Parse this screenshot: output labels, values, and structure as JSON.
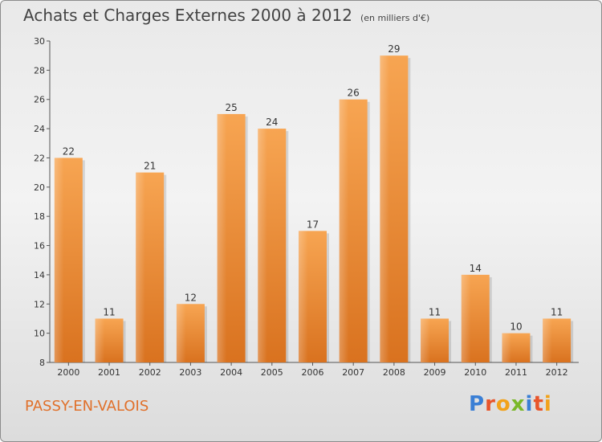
{
  "header": {
    "title": "Achats et Charges Externes 2000 à 2012",
    "unit": "(en milliers d'€)"
  },
  "footer": {
    "town": "PASSY-EN-VALOIS",
    "logo": "Proxiti",
    "logo_colors": [
      "#3a7fd5",
      "#e8552b",
      "#f2a21a",
      "#7ab829",
      "#3a7fd5",
      "#e8552b",
      "#f2a21a"
    ]
  },
  "chart_data": {
    "type": "bar",
    "title": "Achats et Charges Externes 2000 à 2012",
    "subtitle": "(en milliers d'€)",
    "xlabel": "",
    "ylabel": "",
    "categories": [
      "2000",
      "2001",
      "2002",
      "2003",
      "2004",
      "2005",
      "2006",
      "2007",
      "2008",
      "2009",
      "2010",
      "2011",
      "2012"
    ],
    "values": [
      22,
      11,
      21,
      12,
      25,
      24,
      17,
      26,
      29,
      11,
      14,
      10,
      11
    ],
    "ylim": [
      8,
      30
    ],
    "yticks": [
      8,
      10,
      12,
      14,
      16,
      18,
      20,
      22,
      24,
      26,
      28,
      30
    ],
    "grid": false,
    "legend": "none",
    "bar_color": "#f0953f"
  }
}
